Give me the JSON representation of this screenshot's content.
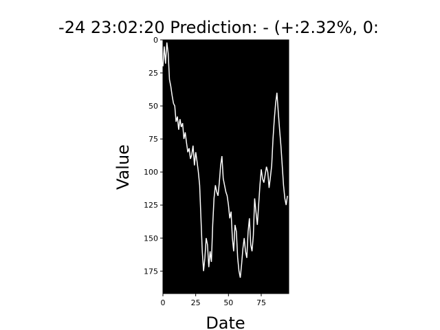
{
  "chart_data": {
    "type": "line",
    "title": "-24 23:02:20 Prediction: - (+:2.32%, 0:",
    "xlabel": "Date",
    "ylabel": "Value",
    "xlim": [
      0,
      96
    ],
    "ylim": [
      192,
      0
    ],
    "x_ticks": [
      0,
      25,
      50,
      75
    ],
    "y_ticks": [
      0,
      25,
      50,
      75,
      100,
      125,
      150,
      175
    ],
    "grid": false,
    "background": "#000000",
    "line_color": "#ffffff",
    "series": [
      {
        "x": [
          0,
          1,
          2,
          3,
          4,
          5,
          6,
          7,
          8,
          9,
          10,
          11,
          12,
          13,
          14,
          15,
          16,
          17,
          18,
          19,
          20,
          21,
          22,
          23,
          24,
          25,
          26,
          27,
          28,
          29,
          30,
          31,
          32,
          33,
          34,
          35,
          36,
          37,
          38,
          39,
          40,
          41,
          42,
          43,
          44,
          45,
          46,
          47,
          48,
          49,
          50,
          51,
          52,
          53,
          54,
          55,
          56,
          57,
          58,
          59,
          60,
          61,
          62,
          63,
          64,
          65,
          66,
          67,
          68,
          69,
          70,
          71,
          72,
          73,
          74,
          75,
          76,
          77,
          78,
          79,
          80,
          81,
          82,
          83,
          84,
          85,
          86,
          87,
          88,
          89,
          90,
          91,
          92,
          93,
          94,
          95
        ],
        "y": [
          20,
          5,
          18,
          2,
          10,
          30,
          35,
          42,
          48,
          50,
          62,
          58,
          68,
          60,
          66,
          63,
          75,
          70,
          78,
          85,
          82,
          90,
          87,
          80,
          95,
          85,
          92,
          100,
          110,
          135,
          160,
          175,
          165,
          150,
          155,
          172,
          160,
          168,
          140,
          120,
          110,
          115,
          118,
          108,
          95,
          88,
          105,
          110,
          115,
          118,
          125,
          135,
          130,
          150,
          160,
          140,
          145,
          165,
          175,
          180,
          170,
          158,
          150,
          160,
          165,
          145,
          135,
          155,
          160,
          148,
          120,
          130,
          140,
          125,
          110,
          98,
          105,
          108,
          102,
          96,
          100,
          112,
          104,
          95,
          75,
          60,
          48,
          40,
          55,
          68,
          80,
          95,
          110,
          120,
          125,
          118
        ]
      }
    ]
  }
}
